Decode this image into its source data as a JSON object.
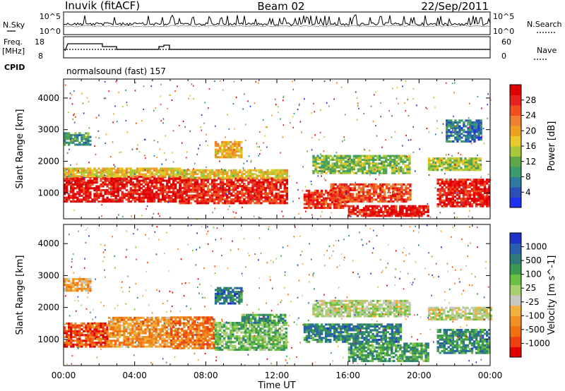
{
  "header": {
    "station": "Inuvik (fitACF)",
    "beam": "Beam 02",
    "date": "22/Sep/2011"
  },
  "noise_panel": {
    "left_label": "N.Sky",
    "right_label": "N.Search",
    "left_ticks": [
      "10^5",
      "10^0"
    ],
    "right_ticks": [
      "10^5",
      "10^0"
    ]
  },
  "freq_panel": {
    "left_label_line1": "Freq.",
    "left_label_line2": "[MHz]",
    "left_ticks": [
      "18",
      "8"
    ],
    "right_label": "Nave",
    "right_ticks": [
      "60",
      "0"
    ]
  },
  "cpid": {
    "label": "CPID",
    "value": "normalsound (fast) 157"
  },
  "x_axis": {
    "label": "Time UT",
    "ticks": [
      "00:00",
      "04:00",
      "08:00",
      "12:00",
      "16:00",
      "20:00",
      "00:00"
    ]
  },
  "chart_data": [
    {
      "type": "heatmap",
      "title": "Power",
      "ylabel": "Slant Range [km]",
      "xlabel": "Time UT",
      "ylim": [
        180,
        4600
      ],
      "yticks": [
        "1000",
        "2000",
        "3000",
        "4000"
      ],
      "colorbar": {
        "label": "Power [dB]",
        "ticks": [
          "4",
          "8",
          "12",
          "16",
          "20",
          "24",
          "28"
        ],
        "colors": [
          "#1e32f0",
          "#2a4fb8",
          "#2f7a9e",
          "#3b9b6a",
          "#5fa84a",
          "#a8c83a",
          "#e8c82a",
          "#f0a020",
          "#f08030",
          "#f05020",
          "#e82020",
          "#e00000"
        ]
      },
      "regions": [
        {
          "t": [
            0.0,
            6.5
          ],
          "r": [
            700,
            1500
          ],
          "level": 0.92
        },
        {
          "t": [
            0.0,
            6.5
          ],
          "r": [
            1500,
            1800
          ],
          "level": 0.55
        },
        {
          "t": [
            6.5,
            12.5
          ],
          "r": [
            650,
            1450
          ],
          "level": 0.88
        },
        {
          "t": [
            6.5,
            12.5
          ],
          "r": [
            1450,
            1750
          ],
          "level": 0.55
        },
        {
          "t": [
            13.5,
            16.0
          ],
          "r": [
            500,
            1100
          ],
          "level": 0.85
        },
        {
          "t": [
            15.0,
            19.5
          ],
          "r": [
            700,
            1300
          ],
          "level": 0.8
        },
        {
          "t": [
            16.0,
            20.5
          ],
          "r": [
            250,
            600
          ],
          "level": 0.92
        },
        {
          "t": [
            14.0,
            19.5
          ],
          "r": [
            1600,
            2200
          ],
          "level": 0.42
        },
        {
          "t": [
            21.0,
            24.0
          ],
          "r": [
            550,
            1400
          ],
          "level": 0.9
        },
        {
          "t": [
            20.5,
            23.5
          ],
          "r": [
            1700,
            2100
          ],
          "level": 0.45
        },
        {
          "t": [
            0.0,
            1.5
          ],
          "r": [
            2500,
            2900
          ],
          "level": 0.3
        },
        {
          "t": [
            8.5,
            10.0
          ],
          "r": [
            2100,
            2600
          ],
          "level": 0.6
        },
        {
          "t": [
            21.5,
            23.5
          ],
          "r": [
            2600,
            3300
          ],
          "level": 0.2
        }
      ]
    },
    {
      "type": "heatmap",
      "title": "Velocity",
      "ylabel": "Slant Range [km]",
      "xlabel": "Time UT",
      "ylim": [
        180,
        4600
      ],
      "yticks": [
        "1000",
        "2000",
        "3000",
        "4000"
      ],
      "colorbar": {
        "label": "Velocity [m s^-1]",
        "ticks": [
          "1000",
          "500",
          "100",
          "25",
          "-25",
          "-100",
          "-500",
          "-1000"
        ],
        "colors": [
          "#1e32c8",
          "#2a5fb0",
          "#2e7a7a",
          "#3a9a50",
          "#6cc040",
          "#a8d070",
          "#c8c8c0",
          "#f0b040",
          "#f09020",
          "#f07010",
          "#f04010",
          "#e00000"
        ]
      },
      "regions": [
        {
          "t": [
            0.0,
            2.5
          ],
          "r": [
            750,
            1500
          ],
          "level": 0.15
        },
        {
          "t": [
            2.5,
            6.0
          ],
          "r": [
            750,
            1700
          ],
          "level": 0.3
        },
        {
          "t": [
            6.0,
            8.5
          ],
          "r": [
            700,
            1700
          ],
          "level": 0.22
        },
        {
          "t": [
            8.5,
            12.5
          ],
          "r": [
            650,
            1500
          ],
          "level": 0.62
        },
        {
          "t": [
            10.0,
            12.5
          ],
          "r": [
            1500,
            1800
          ],
          "level": 0.72
        },
        {
          "t": [
            13.5,
            19.0
          ],
          "r": [
            900,
            1500
          ],
          "level": 0.78
        },
        {
          "t": [
            16.0,
            20.5
          ],
          "r": [
            300,
            900
          ],
          "level": 0.7
        },
        {
          "t": [
            14.0,
            19.5
          ],
          "r": [
            1700,
            2200
          ],
          "level": 0.52
        },
        {
          "t": [
            21.0,
            24.0
          ],
          "r": [
            550,
            1300
          ],
          "level": 0.75
        },
        {
          "t": [
            20.5,
            24.0
          ],
          "r": [
            1600,
            2000
          ],
          "level": 0.5
        },
        {
          "t": [
            8.5,
            10.0
          ],
          "r": [
            2100,
            2600
          ],
          "level": 0.8
        },
        {
          "t": [
            0.0,
            1.5
          ],
          "r": [
            2500,
            2900
          ],
          "level": 0.35
        }
      ]
    }
  ]
}
